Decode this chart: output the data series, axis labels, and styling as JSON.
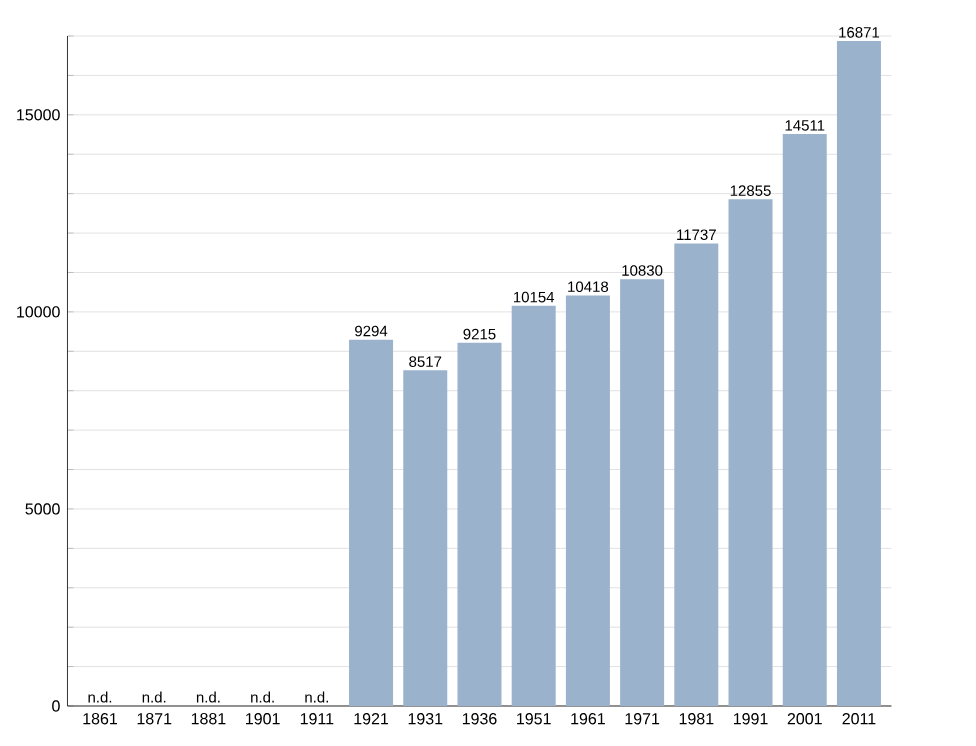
{
  "chart_data": {
    "type": "bar",
    "categories": [
      "1861",
      "1871",
      "1881",
      "1901",
      "1911",
      "1921",
      "1931",
      "1936",
      "1951",
      "1961",
      "1971",
      "1981",
      "1991",
      "2001",
      "2011"
    ],
    "values": [
      null,
      null,
      null,
      null,
      null,
      9294,
      8517,
      9215,
      10154,
      10418,
      10830,
      11737,
      12855,
      14511,
      16871
    ],
    "value_labels": [
      "n.d.",
      "n.d.",
      "n.d.",
      "n.d.",
      "n.d.",
      "9294",
      "8517",
      "9215",
      "10154",
      "10418",
      "10830",
      "11737",
      "12855",
      "14511",
      "16871"
    ],
    "color": "#9ab2cc",
    "ylim": [
      0,
      17000
    ],
    "yticks": [
      0,
      {
        "value": 1000,
        "label": null
      },
      {
        "value": 2000,
        "label": null
      },
      {
        "value": 3000,
        "label": null
      },
      {
        "value": 4000,
        "label": null
      },
      5000,
      {
        "value": 6000,
        "label": null
      },
      {
        "value": 7000,
        "label": null
      },
      {
        "value": 8000,
        "label": null
      },
      {
        "value": 9000,
        "label": null
      },
      10000,
      {
        "value": 11000,
        "label": null
      },
      {
        "value": 12000,
        "label": null
      },
      {
        "value": 13000,
        "label": null
      },
      {
        "value": 14000,
        "label": null
      },
      15000,
      {
        "value": 16000,
        "label": null
      },
      {
        "value": 17000,
        "label": null
      }
    ],
    "grid": "y"
  }
}
